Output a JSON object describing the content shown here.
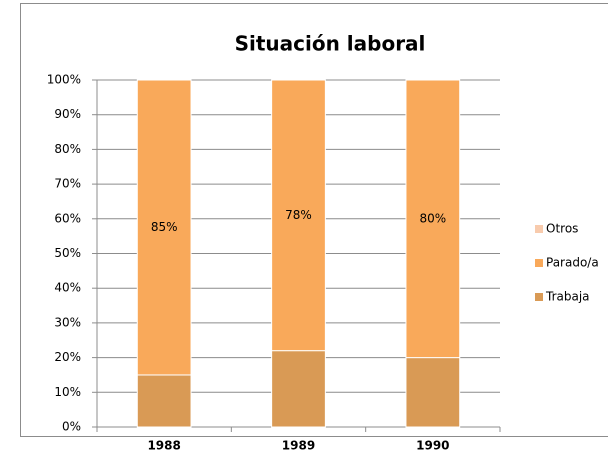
{
  "chart_data": {
    "type": "stacked_bar",
    "title": "Situación laboral",
    "categories": [
      "1988",
      "1989",
      "1990"
    ],
    "series": [
      {
        "name": "Trabaja",
        "color": "#d99a55",
        "values": [
          15,
          22,
          20
        ]
      },
      {
        "name": "Parado/a",
        "color": "#f9a95a",
        "values": [
          85,
          78,
          80
        ],
        "value_labels": [
          "85%",
          "78%",
          "80%"
        ]
      },
      {
        "name": "Otros",
        "color": "#f8cbad",
        "values": [
          0,
          0,
          0
        ]
      }
    ],
    "ylim": [
      0,
      100
    ],
    "yticks": [
      {
        "value": 0,
        "label": "0%"
      },
      {
        "value": 10,
        "label": "10%"
      },
      {
        "value": 20,
        "label": "20%"
      },
      {
        "value": 30,
        "label": "30%"
      },
      {
        "value": 40,
        "label": "40%"
      },
      {
        "value": 50,
        "label": "50%"
      },
      {
        "value": 60,
        "label": "60%"
      },
      {
        "value": 70,
        "label": "70%"
      },
      {
        "value": 80,
        "label": "80%"
      },
      {
        "value": 90,
        "label": "90%"
      },
      {
        "value": 100,
        "label": "100%"
      }
    ],
    "grid": true,
    "legend": "right"
  }
}
